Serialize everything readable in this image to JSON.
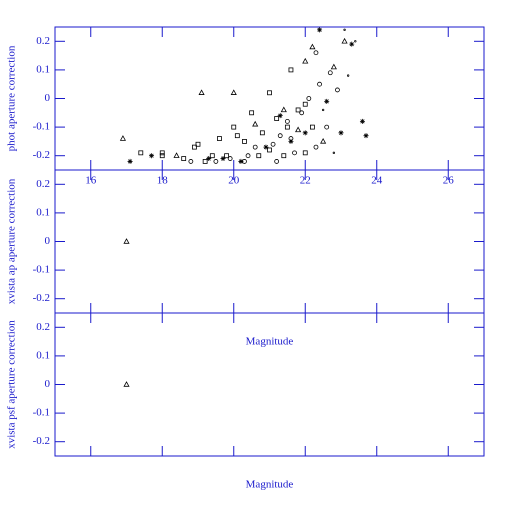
{
  "chart_data": [
    {
      "type": "scatter",
      "ylabel": "phot aperture correction",
      "xlim": [
        15,
        27
      ],
      "ylim": [
        -0.25,
        0.25
      ],
      "xticks": [
        16,
        18,
        20,
        22,
        24,
        26
      ],
      "show_xtick_labels": true,
      "yticks": [
        0.2,
        0.1,
        0,
        -0.1,
        -0.2
      ],
      "series": [
        {
          "marker": "square",
          "color": "#000000",
          "x": [
            17.4,
            18.0,
            18.0,
            18.9,
            19.0,
            19.2,
            19.6,
            19.8,
            20.0,
            20.1,
            20.3,
            20.5,
            20.8,
            21.0,
            21.0,
            21.2,
            21.4,
            21.5,
            21.6,
            21.8,
            22.0,
            22.0,
            22.2,
            18.6,
            19.4,
            20.7
          ],
          "y": [
            -0.19,
            -0.19,
            -0.2,
            -0.17,
            -0.16,
            -0.22,
            -0.14,
            -0.2,
            -0.1,
            -0.13,
            -0.15,
            -0.05,
            -0.12,
            -0.18,
            0.02,
            -0.07,
            -0.2,
            -0.1,
            0.1,
            -0.04,
            -0.19,
            -0.02,
            -0.1,
            -0.21,
            -0.2,
            -0.2
          ]
        },
        {
          "marker": "circle",
          "color": "#000000",
          "x": [
            18.8,
            19.5,
            19.9,
            20.4,
            20.6,
            21.1,
            21.3,
            21.5,
            21.6,
            21.7,
            21.9,
            22.1,
            22.3,
            22.4,
            22.6,
            22.7,
            22.9,
            22.3,
            20.3,
            21.2
          ],
          "y": [
            -0.22,
            -0.22,
            -0.21,
            -0.2,
            -0.17,
            -0.16,
            -0.13,
            -0.08,
            -0.14,
            -0.19,
            -0.05,
            0.0,
            -0.17,
            0.05,
            -0.1,
            0.09,
            0.03,
            0.16,
            -0.22,
            -0.22
          ]
        },
        {
          "marker": "triangle",
          "color": "#000000",
          "x": [
            16.9,
            18.4,
            19.1,
            20.0,
            20.6,
            21.4,
            22.0,
            22.2,
            22.5,
            22.8,
            23.1,
            21.8
          ],
          "y": [
            -0.14,
            -0.2,
            0.02,
            0.02,
            -0.09,
            -0.04,
            0.13,
            0.18,
            -0.15,
            0.11,
            0.2,
            -0.11
          ]
        },
        {
          "marker": "star",
          "color": "#000000",
          "x": [
            17.1,
            17.7,
            19.3,
            19.7,
            20.2,
            20.9,
            21.3,
            21.6,
            22.0,
            22.6,
            23.0,
            23.3,
            23.6,
            23.7,
            22.4
          ],
          "y": [
            -0.22,
            -0.2,
            -0.21,
            -0.21,
            -0.22,
            -0.17,
            -0.06,
            -0.15,
            -0.12,
            -0.01,
            -0.12,
            0.19,
            -0.08,
            -0.13,
            0.24
          ]
        },
        {
          "marker": "dot",
          "color": "#000000",
          "x": [
            23.2,
            23.4,
            23.1,
            22.8,
            22.5
          ],
          "y": [
            0.08,
            0.2,
            0.24,
            -0.19,
            -0.04
          ]
        }
      ]
    },
    {
      "type": "scatter",
      "ylabel": "xvista ap aperture correction",
      "xlabel": "Magnitude",
      "xlim": [
        15,
        27
      ],
      "ylim": [
        -0.25,
        0.25
      ],
      "xticks": [
        16,
        18,
        20,
        22,
        24,
        26
      ],
      "show_xtick_labels": false,
      "yticks": [
        0.2,
        0.1,
        0,
        -0.1,
        -0.2
      ],
      "series": [
        {
          "marker": "triangle",
          "color": "#000000",
          "x": [
            17.0
          ],
          "y": [
            0.0
          ]
        }
      ]
    },
    {
      "type": "scatter",
      "ylabel": "xvista psf aperture correction",
      "xlabel": "Magnitude",
      "xlim": [
        15,
        27
      ],
      "ylim": [
        -0.25,
        0.25
      ],
      "xticks": [
        16,
        18,
        20,
        22,
        24,
        26
      ],
      "show_xtick_labels": false,
      "yticks": [
        0.2,
        0.1,
        0,
        -0.1,
        -0.2
      ],
      "series": [
        {
          "marker": "triangle",
          "color": "#000000",
          "x": [
            17.0
          ],
          "y": [
            0.0
          ]
        }
      ]
    }
  ]
}
